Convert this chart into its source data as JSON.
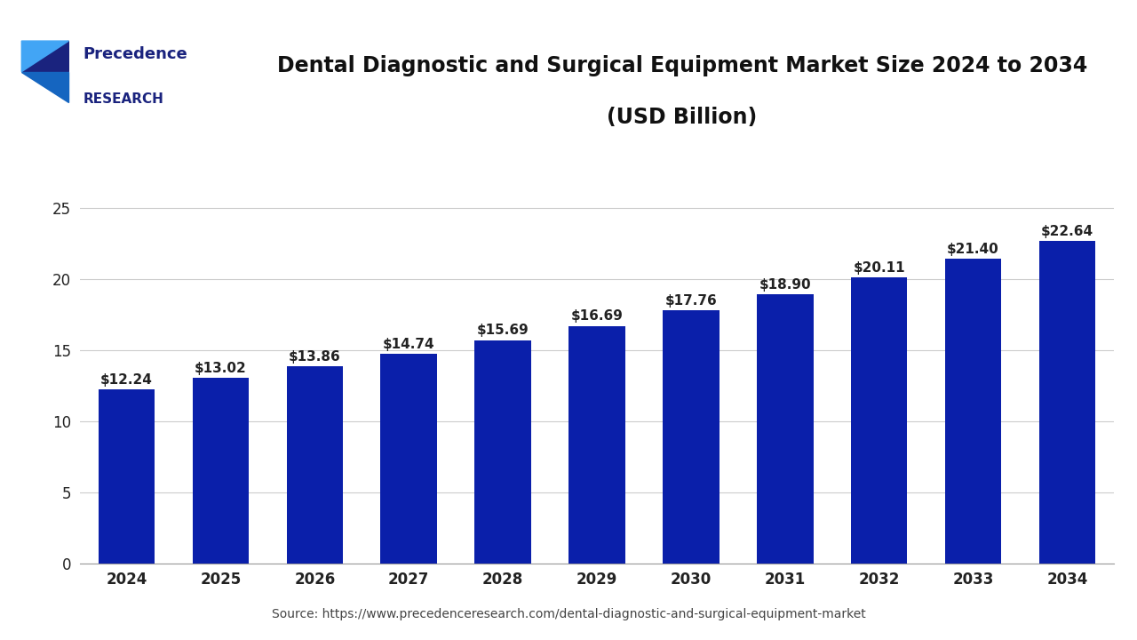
{
  "title_line1": "Dental Diagnostic and Surgical Equipment Market Size 2024 to 2034",
  "title_line2": "(USD Billion)",
  "years": [
    2024,
    2025,
    2026,
    2027,
    2028,
    2029,
    2030,
    2031,
    2032,
    2033,
    2034
  ],
  "values": [
    12.24,
    13.02,
    13.86,
    14.74,
    15.69,
    16.69,
    17.76,
    18.9,
    20.11,
    21.4,
    22.64
  ],
  "bar_color": "#0a1faa",
  "ylim": [
    0,
    27
  ],
  "yticks": [
    0,
    5,
    10,
    15,
    20,
    25
  ],
  "bg_color": "#ffffff",
  "plot_bg_color": "#ffffff",
  "source_text": "Source: https://www.precedenceresearch.com/dental-diagnostic-and-surgical-equipment-market",
  "logo_text_precedence": "Precedence",
  "logo_text_research": "RESEARCH",
  "title_fontsize": 17,
  "bar_label_fontsize": 11,
  "tick_fontsize": 12,
  "source_fontsize": 10,
  "header_line_color": "#1a237e",
  "grid_color": "#cccccc"
}
